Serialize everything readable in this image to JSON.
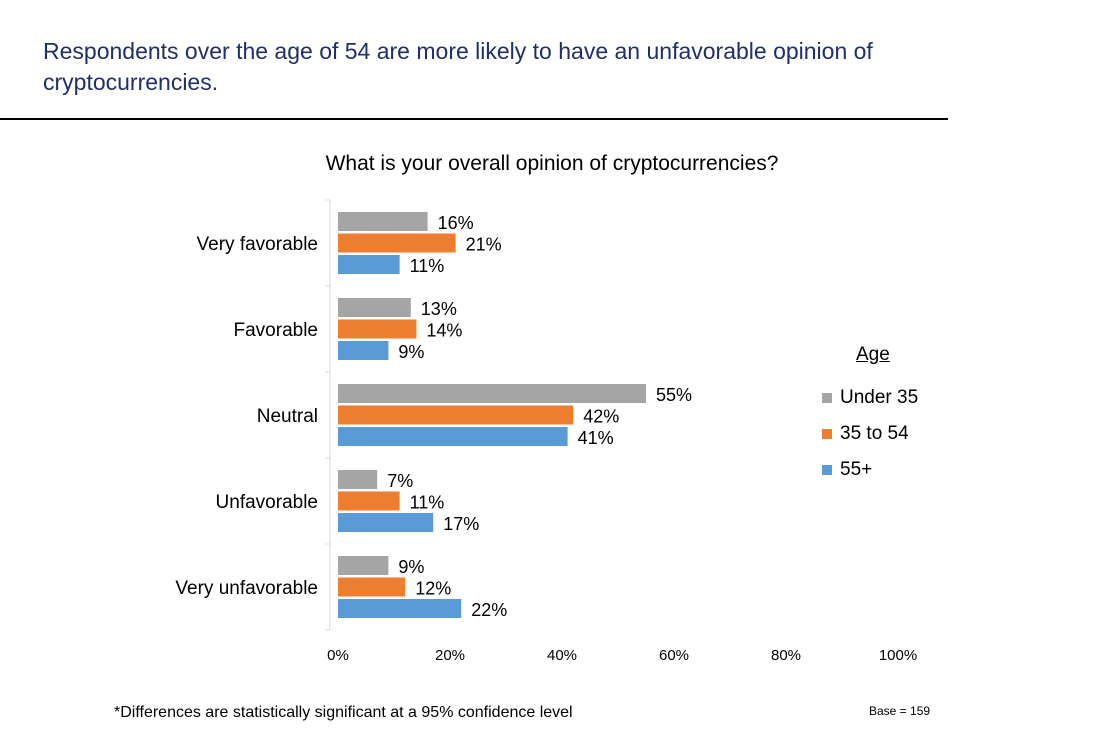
{
  "headline": "Respondents over the age of 54 are more likely to have an unfavorable opinion of cryptocurrencies.",
  "footnote": "*Differences are statistically significant at a 95% confidence level",
  "base_note": "Base = 159",
  "chart_data": {
    "type": "bar",
    "orientation": "horizontal",
    "title": "What is your overall opinion of cryptocurrencies?",
    "categories": [
      "Very favorable",
      "Favorable",
      "Neutral",
      "Unfavorable",
      "Very unfavorable"
    ],
    "series": [
      {
        "name": "Under 35",
        "color": "#a5a5a5",
        "values": [
          16,
          13,
          55,
          7,
          9
        ]
      },
      {
        "name": "35 to 54",
        "color": "#ed7d31",
        "values": [
          21,
          14,
          42,
          11,
          12
        ]
      },
      {
        "name": "55+",
        "color": "#5b9bd5",
        "values": [
          11,
          9,
          41,
          17,
          22
        ]
      }
    ],
    "x_ticks": [
      "0%",
      "20%",
      "40%",
      "60%",
      "80%",
      "100%"
    ],
    "xlim": [
      0,
      100
    ],
    "value_suffix": "%",
    "grid": false,
    "legend": {
      "title": "Age",
      "position": "right"
    }
  }
}
